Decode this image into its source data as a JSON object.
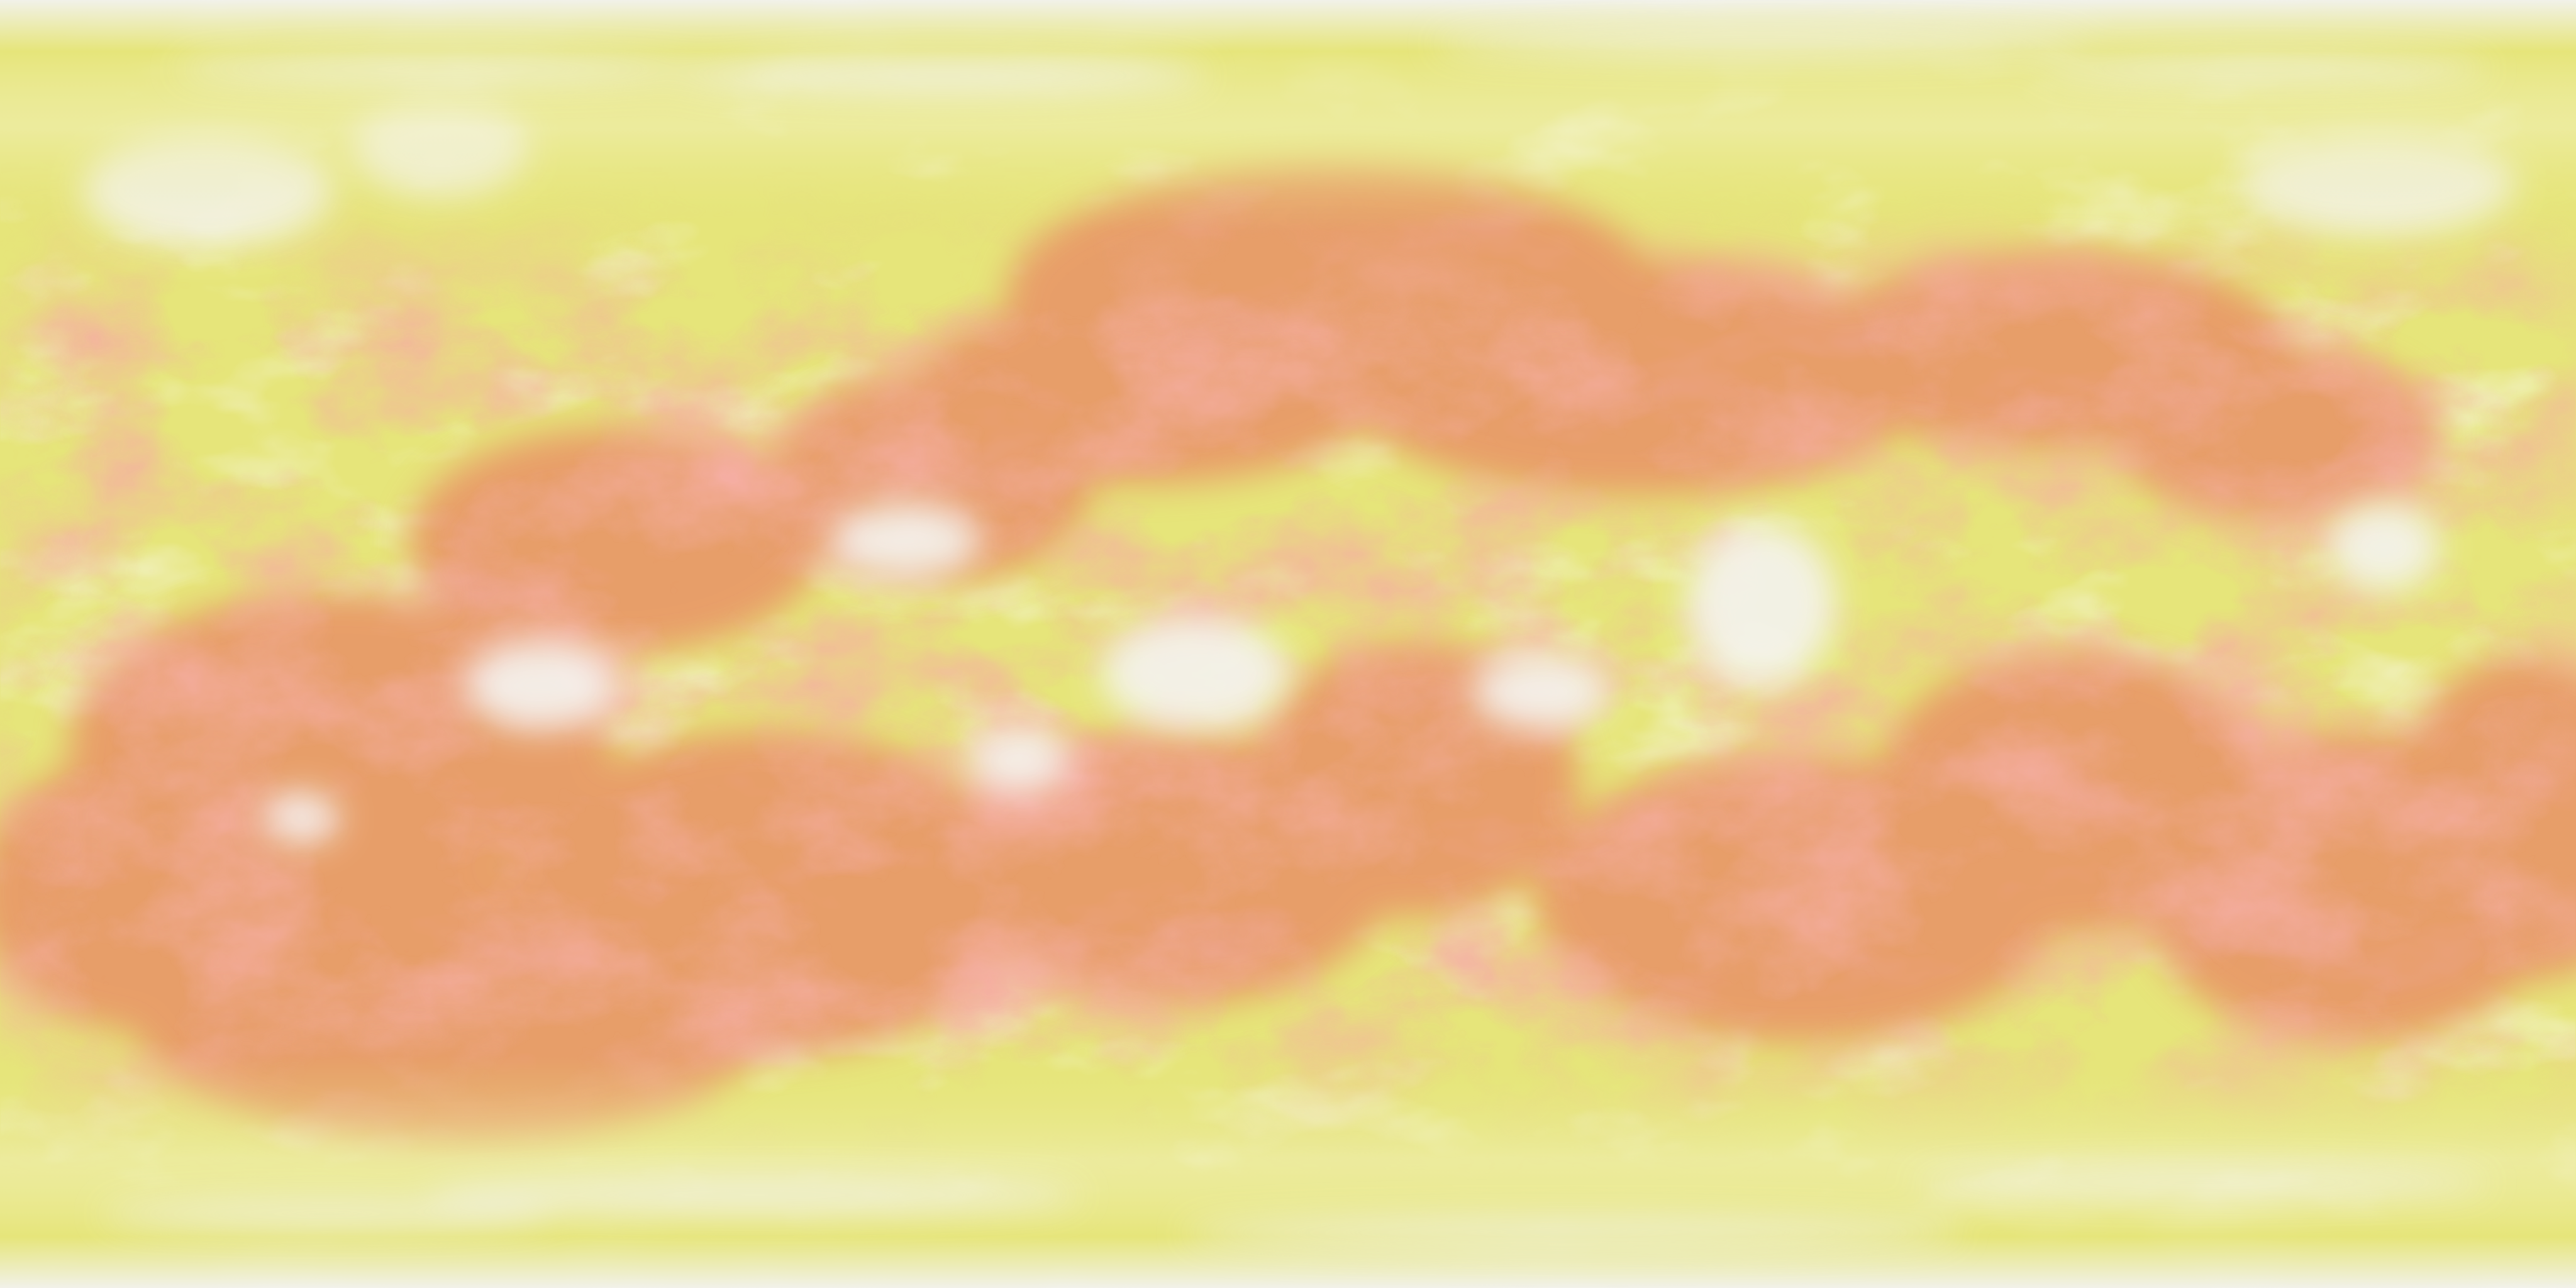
{
  "surface": {
    "projection": "equirectangular",
    "style": "procedural-noise",
    "palette": {
      "base": "#e6e57a",
      "warm": "#e96a5a",
      "hot": "#dd5b56",
      "pale": "#f1f0b9",
      "white": "#f3f3f0"
    },
    "caption": ""
  }
}
